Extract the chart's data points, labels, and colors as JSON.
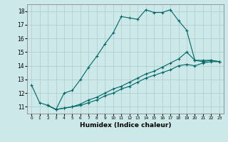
{
  "xlabel": "Humidex (Indice chaleur)",
  "background_color": "#cce8e8",
  "grid_color": "#aacccc",
  "line_color": "#006666",
  "xlim": [
    -0.5,
    23.5
  ],
  "ylim": [
    10.5,
    18.5
  ],
  "yticks": [
    11,
    12,
    13,
    14,
    15,
    16,
    17,
    18
  ],
  "xticks": [
    0,
    1,
    2,
    3,
    4,
    5,
    6,
    7,
    8,
    9,
    10,
    11,
    12,
    13,
    14,
    15,
    16,
    17,
    18,
    19,
    20,
    21,
    22,
    23
  ],
  "line1_x": [
    0,
    1,
    2,
    3,
    4,
    5,
    6,
    7,
    8,
    9,
    10,
    11,
    12,
    13,
    14,
    15,
    16,
    17,
    18,
    19,
    20,
    21,
    22,
    23
  ],
  "line1_y": [
    12.6,
    11.3,
    11.1,
    10.8,
    12.0,
    12.2,
    13.0,
    13.9,
    14.7,
    15.6,
    16.4,
    17.6,
    17.5,
    17.4,
    18.1,
    17.9,
    17.9,
    18.1,
    17.3,
    16.6,
    14.4,
    14.4,
    14.4,
    14.3
  ],
  "line2_x": [
    2,
    3,
    4,
    5,
    6,
    7,
    8,
    9,
    10,
    11,
    12,
    13,
    14,
    15,
    16,
    17,
    18,
    19,
    20,
    21,
    22,
    23
  ],
  "line2_y": [
    11.1,
    10.8,
    10.9,
    11.0,
    11.2,
    11.5,
    11.7,
    12.0,
    12.3,
    12.5,
    12.8,
    13.1,
    13.4,
    13.6,
    13.9,
    14.2,
    14.5,
    15.0,
    14.4,
    14.3,
    14.4,
    14.3
  ],
  "line3_x": [
    2,
    3,
    4,
    5,
    6,
    7,
    8,
    9,
    10,
    11,
    12,
    13,
    14,
    15,
    16,
    17,
    18,
    19,
    20,
    21,
    22,
    23
  ],
  "line3_y": [
    11.1,
    10.8,
    10.9,
    11.0,
    11.1,
    11.3,
    11.5,
    11.8,
    12.0,
    12.3,
    12.5,
    12.8,
    13.1,
    13.3,
    13.5,
    13.7,
    14.0,
    14.1,
    14.0,
    14.2,
    14.3,
    14.3
  ]
}
